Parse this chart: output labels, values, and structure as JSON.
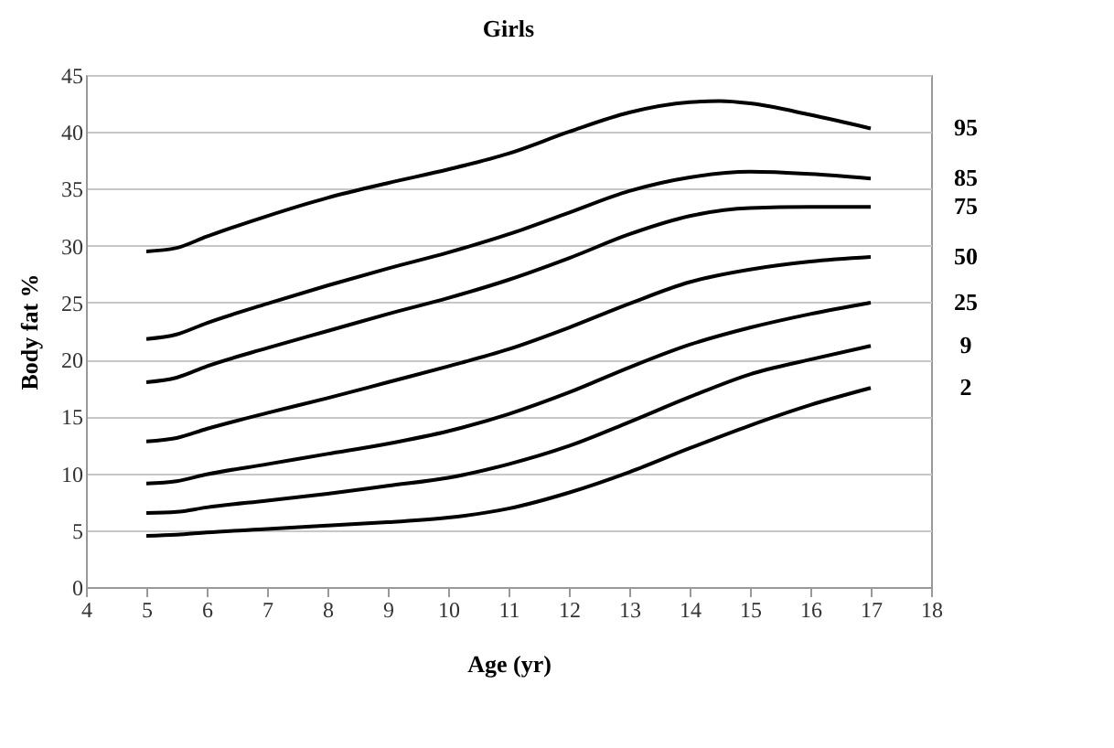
{
  "chart_data": {
    "type": "line",
    "title": "Girls",
    "xlabel": "Age (yr)",
    "ylabel": "Body fat %",
    "x": [
      5,
      5.5,
      6,
      7,
      8,
      9,
      10,
      11,
      12,
      13,
      14,
      15,
      16,
      17
    ],
    "xlim": [
      4,
      18
    ],
    "xticks": [
      4,
      5,
      6,
      7,
      8,
      9,
      10,
      11,
      12,
      13,
      14,
      15,
      16,
      17,
      18
    ],
    "ylim": [
      0,
      45
    ],
    "yticks": [
      0,
      5,
      10,
      15,
      20,
      25,
      30,
      35,
      40,
      45
    ],
    "grid": "y",
    "legend": false,
    "marker": "none",
    "line_style": "solid",
    "series": [
      {
        "name": "95",
        "color": "#000000",
        "x": [
          5,
          5.5,
          6,
          7,
          8,
          9,
          10,
          11,
          12,
          13,
          14,
          14.5,
          15,
          16,
          17
        ],
        "values": [
          29.5,
          29.8,
          30.8,
          32.6,
          34.2,
          35.5,
          36.7,
          38.1,
          40.0,
          41.7,
          42.6,
          42.7,
          42.5,
          41.5,
          40.3
        ]
      },
      {
        "name": "85",
        "color": "#000000",
        "values": [
          21.8,
          22.2,
          23.2,
          24.9,
          26.5,
          28.0,
          29.4,
          31.0,
          32.9,
          34.8,
          36.0,
          36.5,
          36.3,
          35.9
        ]
      },
      {
        "name": "75",
        "color": "#000000",
        "values": [
          18.0,
          18.4,
          19.4,
          21.0,
          22.5,
          24.0,
          25.4,
          27.0,
          28.9,
          31.0,
          32.6,
          33.3,
          33.4,
          33.4
        ]
      },
      {
        "name": "50",
        "color": "#000000",
        "values": [
          12.8,
          13.1,
          13.9,
          15.3,
          16.6,
          18.0,
          19.4,
          20.9,
          22.8,
          24.9,
          26.8,
          27.9,
          28.6,
          29.0
        ]
      },
      {
        "name": "25",
        "color": "#000000",
        "values": [
          9.1,
          9.3,
          9.9,
          10.8,
          11.7,
          12.6,
          13.7,
          15.2,
          17.1,
          19.3,
          21.3,
          22.8,
          24.0,
          25.0
        ]
      },
      {
        "name": "9",
        "color": "#000000",
        "values": [
          6.5,
          6.6,
          7.0,
          7.6,
          8.2,
          8.9,
          9.6,
          10.8,
          12.4,
          14.5,
          16.7,
          18.7,
          20.0,
          21.2
        ]
      },
      {
        "name": "2",
        "color": "#000000",
        "values": [
          4.5,
          4.6,
          4.8,
          5.1,
          5.4,
          5.7,
          6.1,
          6.9,
          8.3,
          10.1,
          12.2,
          14.2,
          16.0,
          17.5
        ]
      }
    ]
  }
}
